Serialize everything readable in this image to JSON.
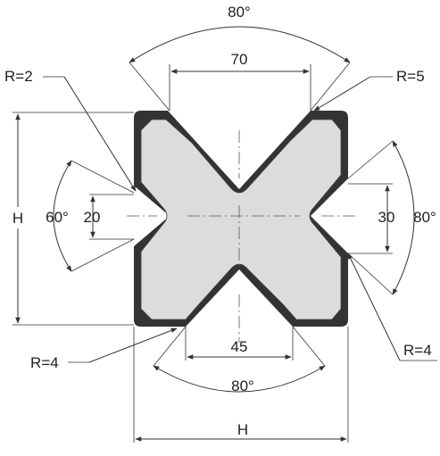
{
  "labels": {
    "top_angle": "80°",
    "top_width": "70",
    "radius_top_left": "R=2",
    "radius_top_right": "R=5",
    "height_left": "H",
    "left_angle": "60°",
    "left_width": "20",
    "right_width": "30",
    "right_angle": "80°",
    "radius_bottom_right": "R=4",
    "radius_bottom_left": "R=4",
    "bottom_width": "45",
    "bottom_angle": "80°",
    "width_bottom": "H"
  },
  "colors": {
    "body_fill": "#dcdcdc",
    "outline_dark": "#333333",
    "line": "#333333"
  }
}
